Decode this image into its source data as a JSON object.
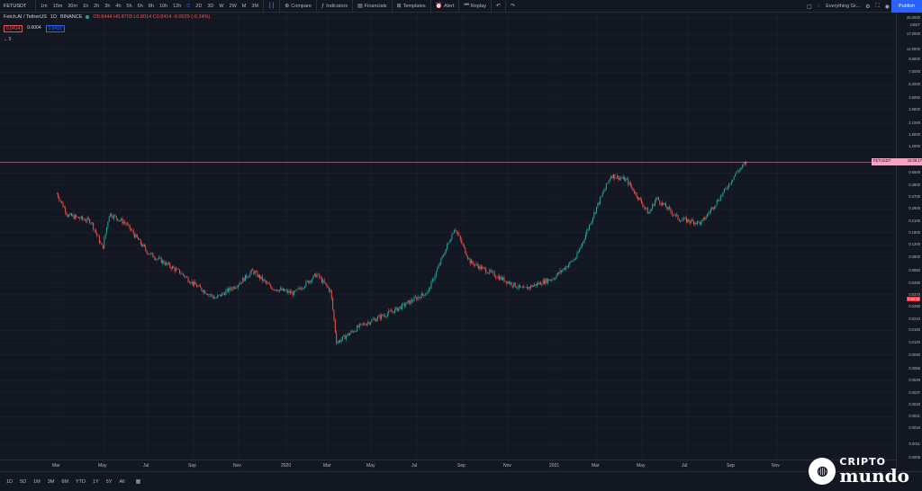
{
  "topbar": {
    "symbol": "FETUSDT",
    "timeframes": [
      "1m",
      "15m",
      "30m",
      "1h",
      "2h",
      "3h",
      "4h",
      "5h",
      "6h",
      "8h",
      "10h",
      "12h",
      "D",
      "2D",
      "3D",
      "W",
      "2W",
      "M",
      "3M"
    ],
    "active_timeframe": "D",
    "compare": "Compare",
    "indicators": "Indicators",
    "financials": "Financials",
    "templates": "Templates",
    "alert": "Alert",
    "replay": "Replay",
    "layout_name": "Everything Gr...",
    "publish": "Publish"
  },
  "legend": {
    "title": "Fetch.AI / TetherUS",
    "interval": "1D",
    "exchange": "BINANCE",
    "ohlc": "O0.8444 H0.8703 L0.8014 C0.8414 -0.0029 (-0.34%)",
    "price_sell": "0.8414",
    "spread": "0.0004",
    "price_buy": "0.8418",
    "indicator_toggle": "9"
  },
  "yaxis": {
    "ticks": [
      "25.0000",
      "USDT",
      "17.0000",
      "12.0000",
      "9.5000",
      "7.0000",
      "5.2000",
      "3.8000",
      "2.9000",
      "2.1000",
      "1.6000",
      "1.2000",
      "0.8414",
      "0.6500",
      "0.4900",
      "0.3700",
      "0.2800",
      "0.2100",
      "0.1600",
      "0.1200",
      "0.0900",
      "0.0650",
      "0.0490",
      "0.0370",
      "0.0332",
      "0.0280",
      "0.0210",
      "0.0160",
      "0.0120",
      "0.0090",
      "0.0065",
      "0.0049",
      "0.0037",
      "0.0028",
      "0.0021",
      "0.0016",
      "0.0011",
      "0.0008"
    ],
    "current_label": "FETUSDT",
    "current_price": "0.8414",
    "countdown": "15:09:17",
    "red_label": "0.0332"
  },
  "xaxis": {
    "ticks": [
      "Mar",
      "May",
      "Jul",
      "Sep",
      "Nov",
      "2020",
      "Mar",
      "May",
      "Jul",
      "Sep",
      "Nov",
      "2021",
      "Mar",
      "May",
      "Jul",
      "Sep",
      "Nov"
    ]
  },
  "bottombar": {
    "ranges": [
      "1D",
      "5D",
      "1M",
      "3M",
      "6M",
      "YTD",
      "1Y",
      "5Y",
      "All"
    ]
  },
  "watermark": {
    "line1": "CRIPTO",
    "line2": "mundo"
  },
  "colors": {
    "up": "#26a69a",
    "down": "#ef5350",
    "accent": "#2962ff",
    "bg": "#131722",
    "grid": "#1e222d"
  },
  "chart_data": {
    "type": "candlestick",
    "x": [
      "2019-02-28",
      "2019-03-15",
      "2019-04-15",
      "2019-05-01",
      "2019-05-10",
      "2019-06-01",
      "2019-07-01",
      "2019-08-15",
      "2019-09-01",
      "2019-10-01",
      "2019-11-01",
      "2019-11-20",
      "2019-12-15",
      "2020-01-15",
      "2020-02-15",
      "2020-03-05",
      "2020-03-13",
      "2020-04-15",
      "2020-06-01",
      "2020-07-15",
      "2020-08-20",
      "2020-09-10",
      "2020-10-15",
      "2020-11-20",
      "2021-01-01",
      "2021-02-01",
      "2021-03-01",
      "2021-03-20",
      "2021-04-10",
      "2021-05-10",
      "2021-05-20",
      "2021-06-20",
      "2021-07-20",
      "2021-08-20",
      "2021-09-05",
      "2021-09-20"
    ],
    "close": [
      0.4,
      0.24,
      0.21,
      0.11,
      0.25,
      0.2,
      0.1,
      0.062,
      0.048,
      0.034,
      0.048,
      0.065,
      0.044,
      0.038,
      0.06,
      0.04,
      0.012,
      0.018,
      0.026,
      0.04,
      0.18,
      0.08,
      0.058,
      0.042,
      0.055,
      0.09,
      0.3,
      0.62,
      0.55,
      0.25,
      0.36,
      0.22,
      0.2,
      0.42,
      0.65,
      0.8414
    ],
    "ylog": true,
    "ylim": [
      0.0008,
      25
    ]
  }
}
